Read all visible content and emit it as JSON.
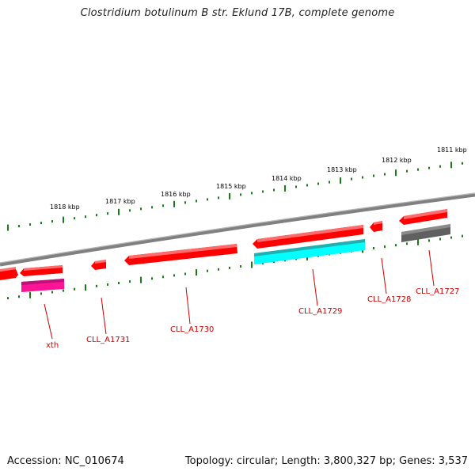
{
  "title": "Clostridium botulinum B str. Eklund 17B, complete genome",
  "footer": {
    "accession": "Accession: NC_010674",
    "stats": "Topology: circular; Length: 3,800,327 bp; Genes: 3,537"
  },
  "scale_labels": [
    "1818 kbp",
    "1817 kbp",
    "1816 kbp",
    "1815 kbp",
    "1814 kbp",
    "1813 kbp",
    "1812 kbp",
    "1811 kbp"
  ],
  "gene_labels": [
    "xth",
    "CLL_A1731",
    "CLL_A1730",
    "CLL_A1729",
    "CLL_A1728",
    "CLL_A1727"
  ],
  "colors": {
    "backbone": "#808080",
    "gene_red": "#ff0000",
    "feature_magenta": "#ff1493",
    "feature_cyan": "#00ffff",
    "feature_gray": "#606060",
    "tick_green": "#1a7a1a",
    "label_red": "#cc0000"
  }
}
